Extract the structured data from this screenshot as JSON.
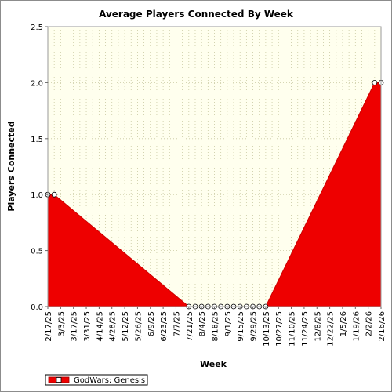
{
  "chart_data": {
    "type": "area",
    "title": "Average Players Connected By Week",
    "xlabel": "Week",
    "ylabel": "Players Connected",
    "ylim": [
      0,
      2.5
    ],
    "yticks": [
      "0.0",
      "0.5",
      "1.0",
      "1.5",
      "2.0",
      "2.5"
    ],
    "ytick_values": [
      0,
      0.5,
      1.0,
      1.5,
      2.0,
      2.5
    ],
    "x_tick_labels": [
      "2/17/25",
      "3/3/25",
      "3/17/25",
      "3/31/25",
      "4/14/25",
      "4/28/25",
      "5/12/25",
      "5/26/25",
      "6/9/25",
      "6/23/25",
      "7/7/25",
      "7/21/25",
      "8/4/25",
      "8/18/25",
      "9/1/25",
      "9/15/25",
      "9/29/25",
      "10/13/25",
      "10/27/25",
      "11/10/25",
      "11/24/25",
      "12/8/25",
      "12/22/25",
      "1/5/26",
      "1/19/26",
      "2/2/26",
      "2/16/26"
    ],
    "x_range_weeks": [
      0,
      52
    ],
    "grid": true,
    "legend_position": "bottom-left",
    "colors": {
      "fill": "#ee0000",
      "edge": "#cc0000",
      "marker_fill": "#ffffff",
      "plot_bg": "#ffffee",
      "grid": "#c8c8a0"
    },
    "series": [
      {
        "name": "GodWars: Genesis",
        "points": [
          {
            "x": "2/17/25",
            "y": 1.0
          },
          {
            "x": "2/24/25",
            "y": 1.0
          },
          {
            "x": "7/21/25",
            "y": 0.0
          },
          {
            "x": "7/28/25",
            "y": 0.0
          },
          {
            "x": "8/4/25",
            "y": 0.0
          },
          {
            "x": "8/11/25",
            "y": 0.0
          },
          {
            "x": "8/18/25",
            "y": 0.0
          },
          {
            "x": "8/25/25",
            "y": 0.0
          },
          {
            "x": "9/1/25",
            "y": 0.0
          },
          {
            "x": "9/8/25",
            "y": 0.0
          },
          {
            "x": "9/15/25",
            "y": 0.0
          },
          {
            "x": "9/22/25",
            "y": 0.0
          },
          {
            "x": "9/29/25",
            "y": 0.0
          },
          {
            "x": "10/6/25",
            "y": 0.0
          },
          {
            "x": "10/13/25",
            "y": 0.0
          },
          {
            "x": "2/9/26",
            "y": 2.0
          },
          {
            "x": "2/16/26",
            "y": 2.0
          }
        ]
      }
    ]
  }
}
